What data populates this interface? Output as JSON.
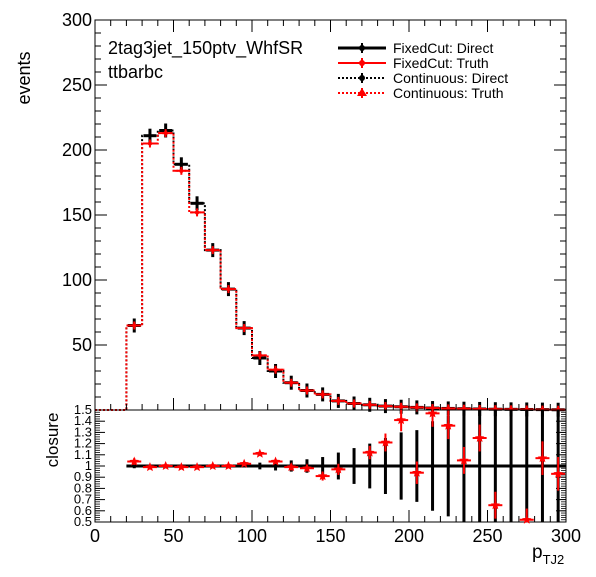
{
  "chart_data": [
    {
      "panel": "main",
      "type": "histogram",
      "title_lines": [
        "2tag3jet_150ptv_WhfSR",
        "ttbarbc"
      ],
      "ylabel": "events",
      "xlim": [
        0,
        300
      ],
      "ylim": [
        0,
        300
      ],
      "y_ticks": [
        50,
        100,
        150,
        200,
        250,
        300
      ],
      "x_bin_edges": [
        0,
        10,
        20,
        30,
        40,
        50,
        60,
        70,
        80,
        90,
        100,
        110,
        120,
        130,
        140,
        150,
        160,
        170,
        180,
        190,
        200,
        210,
        220,
        230,
        240,
        250,
        260,
        270,
        280,
        290,
        300
      ],
      "legend_position": "top-right",
      "series": [
        {
          "name": "FixedCut: Direct",
          "color": "#000000",
          "style": "points-thick",
          "values": [
            0,
            0,
            65,
            211,
            215,
            189,
            159,
            123,
            93,
            63,
            40,
            30,
            21,
            15,
            12,
            7,
            5,
            4,
            3,
            2.5,
            2,
            1.5,
            1.2,
            1,
            0.8,
            0.6,
            0.5,
            0.4,
            0.3,
            0.2
          ]
        },
        {
          "name": "FixedCut: Truth",
          "color": "#ff0000",
          "style": "points",
          "values": [
            0,
            0,
            65,
            205,
            213,
            184,
            152,
            123,
            93,
            63,
            42,
            31,
            21,
            15,
            12,
            7,
            5,
            4,
            3,
            2.5,
            2,
            1.5,
            1.2,
            1,
            0.8,
            0.6,
            0.5,
            0.4,
            0.3,
            0.2
          ]
        },
        {
          "name": "Continuous: Direct",
          "color": "#000000",
          "style": "dotted-step",
          "values": [
            0,
            0,
            65,
            211,
            215,
            189,
            159,
            123,
            93,
            63,
            40,
            30,
            21,
            15,
            12,
            7,
            5,
            4,
            3,
            2.5,
            2,
            1.5,
            1.2,
            1,
            0.8,
            0.6,
            0.5,
            0.4,
            0.3,
            0.2
          ]
        },
        {
          "name": "Continuous: Truth",
          "color": "#ff0000",
          "style": "dotted-step-triangles",
          "values": [
            0,
            0,
            65,
            205,
            213,
            184,
            152,
            123,
            93,
            63,
            42,
            31,
            21,
            15,
            12,
            7,
            5,
            4,
            3,
            2.5,
            2,
            1.5,
            1.2,
            1,
            0.8,
            0.6,
            0.5,
            0.4,
            0.3,
            0.2
          ]
        }
      ]
    },
    {
      "panel": "ratio",
      "type": "scatter",
      "ylabel": "closure",
      "xlabel": "p_TJ2",
      "xlabel_main": "p",
      "xlabel_sub": "TJ2",
      "xlim": [
        0,
        300
      ],
      "ylim": [
        0.5,
        1.5
      ],
      "x_ticks": [
        0,
        50,
        100,
        150,
        200,
        250,
        300
      ],
      "y_ticks": [
        0.5,
        0.6,
        0.7,
        0.8,
        0.9,
        1,
        1.1,
        1.2,
        1.3,
        1.4,
        1.5
      ],
      "y_tick_labels": [
        "0.5",
        "0.6",
        "0.7",
        "0.8",
        "0.9",
        "1",
        "1.1",
        "1.2",
        "1.3",
        "1.4",
        "1.5"
      ],
      "reference_band": {
        "color": "#000000",
        "value": 1,
        "errors": [
          0,
          0,
          0.02,
          0.01,
          0.01,
          0.01,
          0.01,
          0.01,
          0.01,
          0.01,
          0.03,
          0.04,
          0.05,
          0.06,
          0.08,
          0.12,
          0.16,
          0.2,
          0.25,
          0.3,
          0.32,
          0.4,
          0.45,
          0.5,
          0.5,
          0.5,
          0.5,
          0.5,
          0.5,
          0.5
        ]
      },
      "series": [
        {
          "color": "#ff0000",
          "marker": "star",
          "x": [
            25,
            35,
            45,
            55,
            65,
            75,
            85,
            95,
            105,
            115,
            125,
            135,
            145,
            155,
            175,
            185,
            195,
            205,
            215,
            225,
            235,
            245,
            255,
            275,
            285,
            295
          ],
          "values": [
            1.04,
            0.99,
            1.0,
            0.99,
            0.99,
            1.0,
            1.0,
            1.02,
            1.11,
            1.04,
            0.99,
            0.98,
            0.91,
            0.97,
            1.12,
            1.21,
            1.41,
            0.94,
            1.47,
            1.36,
            1.05,
            1.25,
            0.65,
            0.52,
            1.07,
            0.93
          ],
          "errors": [
            0.03,
            0.01,
            0.01,
            0.01,
            0.01,
            0.01,
            0.01,
            0.01,
            0.02,
            0.02,
            0.03,
            0.03,
            0.04,
            0.05,
            0.06,
            0.08,
            0.1,
            0.1,
            0.12,
            0.12,
            0.12,
            0.12,
            0.12,
            0.1,
            0.15,
            0.15
          ]
        }
      ]
    }
  ]
}
